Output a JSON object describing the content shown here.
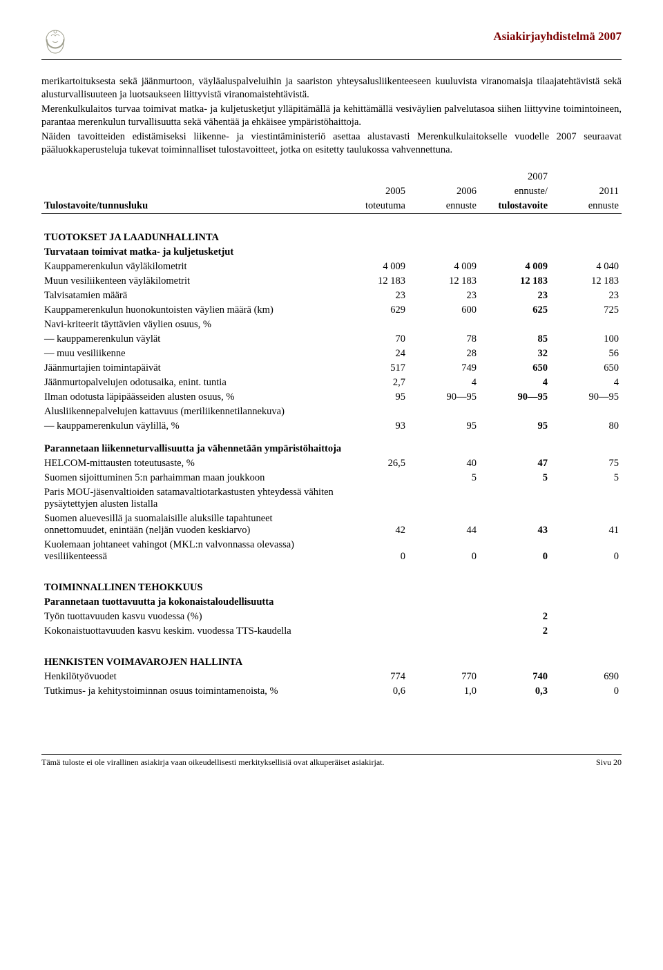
{
  "header": {
    "title": "Asiakirjayhdistelmä 2007"
  },
  "paragraphs": {
    "p1": "merikartoituksesta sekä jäänmurtoon, väyläaluspalveluihin ja saariston yhteysalusliikenteeseen kuuluvista viranomaisja tilaajatehtävistä sekä alusturvallisuuteen ja luotsaukseen liittyvistä viranomaistehtävistä.",
    "p2": "Merenkulkulaitos turvaa toimivat matka- ja kuljetusketjut ylläpitämällä ja kehittämällä vesiväylien palvelutasoa siihen liittyvine toimintoineen, parantaa merenkulun turvallisuutta sekä vähentää ja ehkäisee ympäristöhaittoja.",
    "p3": "Näiden tavoitteiden edistämiseksi liikenne- ja viestintäministeriö asettaa alustavasti Merenkulkulaitokselle vuodelle 2007 seuraavat pääluokkaperusteluja tukevat toiminnalliset tulostavoitteet, jotka on esitetty taulukossa vahvennettuna."
  },
  "table": {
    "col_header_left": "Tulostavoite/tunnusluku",
    "col_headers": [
      {
        "l1": "",
        "l2": "2005",
        "l3": "toteutuma"
      },
      {
        "l1": "",
        "l2": "2006",
        "l3": "ennuste"
      },
      {
        "l1": "2007",
        "l2": "ennuste/",
        "l3": "tulostavoite",
        "bold": true
      },
      {
        "l1": "",
        "l2": "2011",
        "l3": "ennuste"
      }
    ],
    "sections": [
      {
        "title": "TUOTOKSET JA LAADUNHALLINTA",
        "subtitle": "Turvataan toimivat matka- ja kuljetusketjut",
        "rows": [
          {
            "label": "Kauppamerenkulun väyläkilometrit",
            "vals": [
              "4 009",
              "4 009",
              "4 009",
              "4 040"
            ]
          },
          {
            "label": "Muun vesiliikenteen väyläkilometrit",
            "vals": [
              "12 183",
              "12 183",
              "12 183",
              "12 183"
            ]
          },
          {
            "label": "Talvisatamien määrä",
            "vals": [
              "23",
              "23",
              "23",
              "23"
            ]
          },
          {
            "label": "Kauppamerenkulun huonokuntoisten väylien määrä (km)",
            "vals": [
              "629",
              "600",
              "625",
              "725"
            ]
          },
          {
            "label": "Navi-kriteerit täyttävien väylien osuus, %",
            "vals": [
              "",
              "",
              "",
              ""
            ]
          },
          {
            "label": "— kauppamerenkulun väylät",
            "vals": [
              "70",
              "78",
              "85",
              "100"
            ]
          },
          {
            "label": "— muu vesiliikenne",
            "vals": [
              "24",
              "28",
              "32",
              "56"
            ]
          },
          {
            "label": "Jäänmurtajien toimintapäivät",
            "vals": [
              "517",
              "749",
              "650",
              "650"
            ]
          },
          {
            "label": "Jäänmurtopalvelujen odotusaika, enint. tuntia",
            "vals": [
              "2,7",
              "4",
              "4",
              "4"
            ]
          },
          {
            "label": "Ilman odotusta läpipäässeiden alusten osuus, %",
            "vals": [
              "95",
              "90—95",
              "90—95",
              "90—95"
            ]
          },
          {
            "label": "Alusliikennepalvelujen kattavuus (meriliikennetilannekuva)",
            "vals": [
              "",
              "",
              "",
              ""
            ]
          },
          {
            "label": "— kauppamerenkulun väylillä, %",
            "vals": [
              "93",
              "95",
              "95",
              "80"
            ]
          }
        ]
      },
      {
        "subtitle": "Parannetaan liikenneturvallisuutta ja vähennetään ympäristöhaittoja",
        "rows": [
          {
            "label": "HELCOM-mittausten toteutusaste, %",
            "vals": [
              "26,5",
              "40",
              "47",
              "75"
            ]
          },
          {
            "label": "Suomen sijoittuminen 5:n parhaimman maan joukkoon",
            "vals": [
              "",
              "5",
              "5",
              "5"
            ]
          },
          {
            "label": "Paris MOU-jäsenvaltioiden satamavaltiotarkastusten yhteydessä vähiten pysäytettyjen alusten listalla",
            "vals": [
              "",
              "",
              "",
              ""
            ]
          },
          {
            "label": "Suomen aluevesillä ja suomalaisille aluksille tapahtuneet onnettomuudet, enintään (neljän vuoden keskiarvo)",
            "vals": [
              "42",
              "44",
              "43",
              "41"
            ]
          },
          {
            "label": "Kuolemaan johtaneet vahingot (MKL:n valvonnassa olevassa) vesiliikenteessä",
            "vals": [
              "0",
              "0",
              "0",
              "0"
            ]
          }
        ]
      },
      {
        "title": "TOIMINNALLINEN TEHOKKUUS",
        "subtitle": "Parannetaan tuottavuutta ja kokonaistaloudellisuutta",
        "rows": [
          {
            "label": "Työn tuottavuuden kasvu vuodessa (%)",
            "vals": [
              "",
              "",
              "2",
              ""
            ]
          },
          {
            "label": "Kokonaistuottavuuden kasvu keskim. vuodessa TTS-kaudella",
            "vals": [
              "",
              "",
              "2",
              ""
            ]
          }
        ]
      },
      {
        "title": "HENKISTEN VOIMAVAROJEN HALLINTA",
        "rows": [
          {
            "label": "Henkilötyövuodet",
            "vals": [
              "774",
              "770",
              "740",
              "690"
            ]
          },
          {
            "label": "Tutkimus- ja kehitystoiminnan osuus toimintamenoista, %",
            "vals": [
              "0,6",
              "1,0",
              "0,3",
              "0"
            ]
          }
        ]
      }
    ]
  },
  "footer": {
    "left": "Tämä tuloste ei ole virallinen asiakirja vaan oikeudellisesti merkityksellisiä ovat alkuperäiset asiakirjat.",
    "right": "Sivu 20"
  }
}
